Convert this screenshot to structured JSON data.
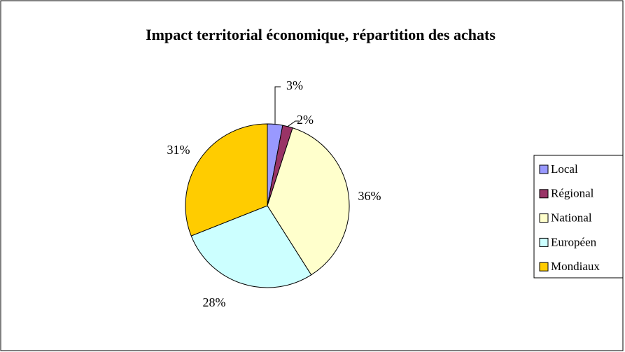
{
  "chart_data": {
    "type": "pie",
    "title": "Impact territorial économique, répartition des achats",
    "categories": [
      "Local",
      "Régional",
      "National",
      "Européen",
      "Mondiaux"
    ],
    "values": [
      3,
      2,
      36,
      28,
      31
    ],
    "value_labels": [
      "3%",
      "2%",
      "36%",
      "28%",
      "31%"
    ],
    "colors": [
      "#9999ff",
      "#993366",
      "#ffffcc",
      "#ccffff",
      "#ffcc00"
    ],
    "legend": "right"
  }
}
